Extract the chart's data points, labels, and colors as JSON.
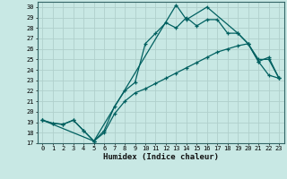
{
  "xlabel": "Humidex (Indice chaleur)",
  "bg_color": "#c8e8e4",
  "grid_color": "#b0d0cc",
  "line_color": "#006060",
  "xlim": [
    -0.5,
    23.5
  ],
  "ylim": [
    17,
    30.5
  ],
  "xticks": [
    0,
    1,
    2,
    3,
    4,
    5,
    6,
    7,
    8,
    9,
    10,
    11,
    12,
    13,
    14,
    15,
    16,
    17,
    18,
    19,
    20,
    21,
    22,
    23
  ],
  "yticks": [
    17,
    18,
    19,
    20,
    21,
    22,
    23,
    24,
    25,
    26,
    27,
    28,
    29,
    30
  ],
  "line1": {
    "x": [
      0,
      1,
      2,
      3,
      4,
      5,
      6,
      7,
      8,
      9,
      10,
      11,
      12,
      13,
      14,
      15,
      16,
      17,
      18,
      19,
      20,
      21,
      22,
      23
    ],
    "y": [
      19.2,
      18.9,
      18.8,
      19.2,
      18.2,
      17.2,
      18.0,
      19.8,
      21.0,
      21.8,
      22.2,
      22.7,
      23.2,
      23.7,
      24.2,
      24.7,
      25.2,
      25.7,
      26.0,
      26.3,
      26.5,
      24.8,
      23.5,
      23.2
    ]
  },
  "line2": {
    "x": [
      0,
      1,
      2,
      3,
      4,
      5,
      6,
      7,
      8,
      9,
      10,
      11,
      12,
      13,
      14,
      15,
      16,
      17,
      18,
      19,
      20,
      21,
      22,
      23
    ],
    "y": [
      19.2,
      18.9,
      18.8,
      19.2,
      18.2,
      17.2,
      18.2,
      20.5,
      22.0,
      22.8,
      26.5,
      27.5,
      28.5,
      28.0,
      29.0,
      28.2,
      28.8,
      28.8,
      27.5,
      27.5,
      26.5,
      25.0,
      25.0,
      23.2
    ]
  },
  "line3": {
    "x": [
      0,
      5,
      13,
      14,
      16,
      19,
      20,
      21,
      22,
      23
    ],
    "y": [
      19.2,
      17.2,
      30.2,
      28.8,
      30.0,
      27.5,
      26.5,
      24.8,
      25.2,
      23.2
    ]
  }
}
